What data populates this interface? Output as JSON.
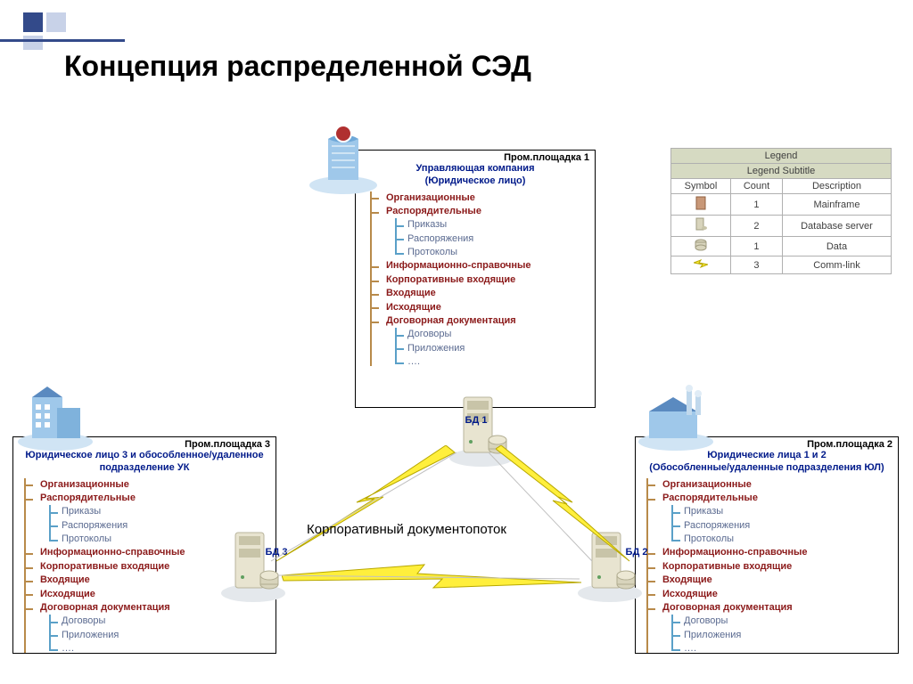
{
  "title": "Концепция распределенной СЭД",
  "colors": {
    "cat": "#8b1a1a",
    "sub": "#5a6a90",
    "siteBorder": "#000000",
    "siteHeader": "#000000",
    "siteSub": "#001a8a",
    "catBar": "#b88a4a",
    "subBar": "#5aa0c8",
    "legendHdr": "#d6dac2",
    "bolt": "#ffef3c",
    "boltStroke": "#b8a800",
    "serverBody": "#e8e4d0",
    "serverShadow": "#c8c4a8",
    "buildingBlue": "#7fb8e8",
    "buildingDark": "#3a6aa8"
  },
  "flowLabel": "Корпоративный документопоток",
  "dbLabels": {
    "db1": "БД 1",
    "db2": "БД 2",
    "db3": "БД 3"
  },
  "sites": {
    "s1": {
      "header": "Пром.площадка 1",
      "sub1": "Управляющая компания",
      "sub2": "(Юридическое лицо)"
    },
    "s2": {
      "header": "Пром.площадка 2",
      "sub1": "Юридические лица 1 и 2",
      "sub2": "(Обособленные/удаленные подразделения ЮЛ)"
    },
    "s3": {
      "header": "Пром.площадка 3",
      "sub1": "Юридическое лицо 3 и обособленное/удаленное",
      "sub2": "подразделение УК"
    }
  },
  "categories": [
    {
      "t": "Организационные"
    },
    {
      "t": "Распорядительные",
      "subs": [
        "Приказы",
        "Распоряжения",
        "Протоколы"
      ]
    },
    {
      "t": "Информационно-справочные"
    },
    {
      "t": "Корпоративные входящие"
    },
    {
      "t": "Входящие"
    },
    {
      "t": "Исходящие"
    },
    {
      "t": "Договорная документация",
      "subs": [
        "Договоры",
        "Приложения",
        "…."
      ]
    }
  ],
  "legend": {
    "title": "Legend",
    "subtitle": "Legend Subtitle",
    "cols": [
      "Symbol",
      "Count",
      "Description"
    ],
    "rows": [
      {
        "icon": "mainframe",
        "count": "1",
        "desc": "Mainframe"
      },
      {
        "icon": "dbserver",
        "count": "2",
        "desc": "Database server"
      },
      {
        "icon": "data",
        "count": "1",
        "desc": "Data"
      },
      {
        "icon": "commlink",
        "count": "3",
        "desc": "Comm-link"
      }
    ]
  }
}
